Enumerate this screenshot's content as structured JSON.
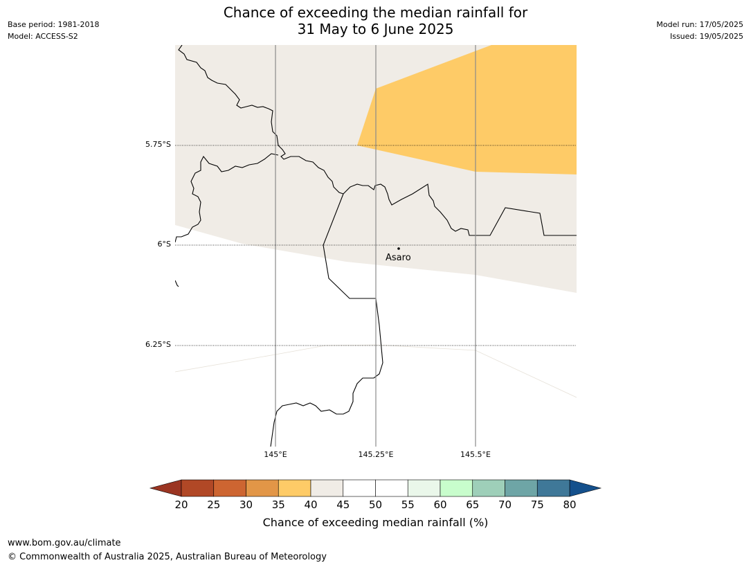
{
  "title": {
    "line1": "Chance of exceeding the median rainfall for",
    "line2": "31 May to 6 June 2025"
  },
  "meta_left": {
    "base_period": "Base period: 1981-2018",
    "model": "Model: ACCESS-S2"
  },
  "meta_right": {
    "model_run": "Model run: 17/05/2025",
    "issued": "Issued: 19/05/2025"
  },
  "map": {
    "latitude_labels": [
      "5.75°S",
      "6°S",
      "6.25°S"
    ],
    "longitude_labels": [
      "145°E",
      "145.25°E",
      "145.5°E"
    ],
    "place_name": "Asaro"
  },
  "colorbar": {
    "title": "Chance of exceeding median rainfall (%)",
    "ticks": [
      "20",
      "25",
      "30",
      "35",
      "40",
      "45",
      "50",
      "55",
      "60",
      "65",
      "70",
      "75",
      "80"
    ],
    "colors": [
      "#9b3522",
      "#b14826",
      "#cd6531",
      "#e29647",
      "#fecb67",
      "#f0ece6",
      "#ffffff",
      "#ffffff",
      "#eaf7ea",
      "#c8fdcc",
      "#9ecfb9",
      "#6ea5a6",
      "#3f7898",
      "#14508c"
    ]
  },
  "footer": {
    "url": "www.bom.gov.au/climate",
    "copyright": "© Commonwealth of Australia 2025, Australian Bureau of Meteorology"
  }
}
